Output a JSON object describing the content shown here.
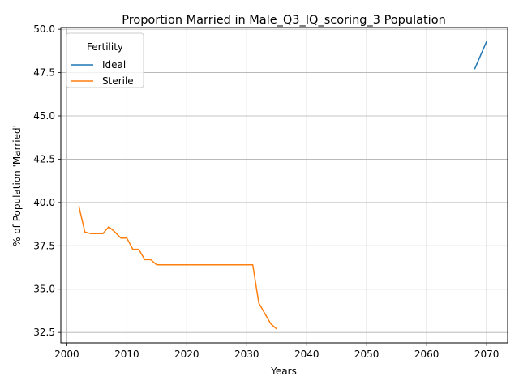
{
  "chart_data": {
    "type": "line",
    "title": "Proportion Married in Male_Q3_IQ_scoring_3 Population",
    "xlabel": "Years",
    "ylabel": "% of Population 'Married'",
    "xlim": [
      1999,
      2073.5
    ],
    "ylim": [
      31.9,
      50.1
    ],
    "xticks": [
      2000,
      2010,
      2020,
      2030,
      2040,
      2050,
      2060,
      2070
    ],
    "yticks": [
      32.5,
      35.0,
      37.5,
      40.0,
      42.5,
      45.0,
      47.5,
      50.0
    ],
    "ytick_labels": [
      "32.5",
      "35.0",
      "37.5",
      "40.0",
      "42.5",
      "45.0",
      "47.5",
      "50.0"
    ],
    "grid": true,
    "legend": {
      "title": "Fertility",
      "placement": "top-left"
    },
    "series": [
      {
        "name": "Ideal",
        "color": "#1f77b4",
        "x": [
          2068,
          2070
        ],
        "y": [
          47.7,
          49.3
        ]
      },
      {
        "name": "Sterile",
        "color": "#ff7f0e",
        "x": [
          2002,
          2003,
          2004,
          2005,
          2006,
          2007,
          2008,
          2009,
          2010,
          2011,
          2012,
          2013,
          2014,
          2015,
          2016,
          2017,
          2018,
          2019,
          2020,
          2021,
          2022,
          2023,
          2024,
          2025,
          2026,
          2027,
          2028,
          2029,
          2030,
          2031,
          2032,
          2033,
          2034,
          2035
        ],
        "y": [
          39.8,
          38.3,
          38.2,
          38.2,
          38.2,
          38.6,
          38.3,
          37.95,
          37.95,
          37.3,
          37.3,
          36.7,
          36.7,
          36.4,
          36.4,
          36.4,
          36.4,
          36.4,
          36.4,
          36.4,
          36.4,
          36.4,
          36.4,
          36.4,
          36.4,
          36.4,
          36.4,
          36.4,
          36.4,
          36.4,
          34.2,
          33.6,
          33.0,
          32.7
        ]
      }
    ]
  }
}
